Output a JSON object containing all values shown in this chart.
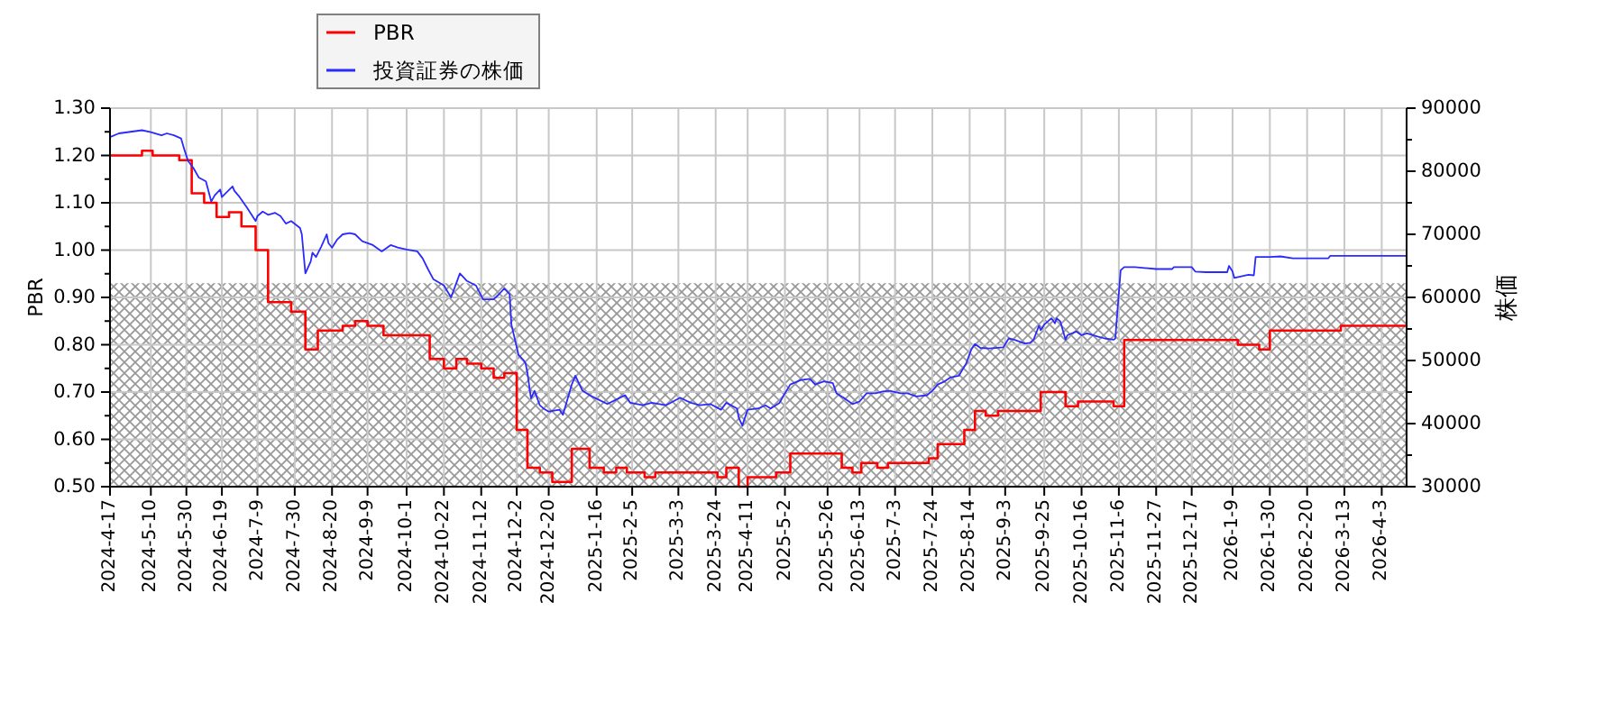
{
  "chart_data": {
    "type": "line",
    "ylabel": "PBR",
    "y2label": "株価",
    "xlim": [
      "2024-04-17",
      "2026-04-17"
    ],
    "xticks": [
      {
        "value": "2024-04-17",
        "label": "2024-4-17"
      },
      {
        "value": "2024-05-10",
        "label": "2024-5-10"
      },
      {
        "value": "2024-05-30",
        "label": "2024-5-30"
      },
      {
        "value": "2024-06-19",
        "label": "2024-6-19"
      },
      {
        "value": "2024-07-09",
        "label": "2024-7-9"
      },
      {
        "value": "2024-07-30",
        "label": "2024-7-30"
      },
      {
        "value": "2024-08-20",
        "label": "2024-8-20"
      },
      {
        "value": "2024-09-09",
        "label": "2024-9-9"
      },
      {
        "value": "2024-10-01",
        "label": "2024-10-1"
      },
      {
        "value": "2024-10-22",
        "label": "2024-10-22"
      },
      {
        "value": "2024-11-12",
        "label": "2024-11-12"
      },
      {
        "value": "2024-12-02",
        "label": "2024-12-2"
      },
      {
        "value": "2024-12-20",
        "label": "2024-12-20"
      },
      {
        "value": "2025-01-16",
        "label": "2025-1-16"
      },
      {
        "value": "2025-02-05",
        "label": "2025-2-5"
      },
      {
        "value": "2025-03-03",
        "label": "2025-3-3"
      },
      {
        "value": "2025-03-24",
        "label": "2025-3-24"
      },
      {
        "value": "2025-04-11",
        "label": "2025-4-11"
      },
      {
        "value": "2025-05-02",
        "label": "2025-5-2"
      },
      {
        "value": "2025-05-26",
        "label": "2025-5-26"
      },
      {
        "value": "2025-06-13",
        "label": "2025-6-13"
      },
      {
        "value": "2025-07-03",
        "label": "2025-7-3"
      },
      {
        "value": "2025-07-24",
        "label": "2025-7-24"
      },
      {
        "value": "2025-08-14",
        "label": "2025-8-14"
      },
      {
        "value": "2025-09-03",
        "label": "2025-9-3"
      },
      {
        "value": "2025-09-25",
        "label": "2025-9-25"
      },
      {
        "value": "2025-10-16",
        "label": "2025-10-16"
      },
      {
        "value": "2025-11-06",
        "label": "2025-11-6"
      },
      {
        "value": "2025-11-27",
        "label": "2025-11-27"
      },
      {
        "value": "2025-12-17",
        "label": "2025-12-17"
      },
      {
        "value": "2026-01-09",
        "label": "2026-1-9"
      },
      {
        "value": "2026-01-30",
        "label": "2026-1-30"
      },
      {
        "value": "2026-02-20",
        "label": "2026-2-20"
      },
      {
        "value": "2026-03-13",
        "label": "2026-3-13"
      },
      {
        "value": "2026-04-03",
        "label": "2026-4-3"
      }
    ],
    "ylim": [
      0.5,
      1.3
    ],
    "yticks": [
      {
        "value": 0.5,
        "label": "0.50"
      },
      {
        "value": 0.55,
        "label": null
      },
      {
        "value": 0.6,
        "label": "0.60"
      },
      {
        "value": 0.65,
        "label": null
      },
      {
        "value": 0.7,
        "label": "0.70"
      },
      {
        "value": 0.75,
        "label": null
      },
      {
        "value": 0.8,
        "label": "0.80"
      },
      {
        "value": 0.85,
        "label": null
      },
      {
        "value": 0.9,
        "label": "0.90"
      },
      {
        "value": 0.95,
        "label": null
      },
      {
        "value": 1.0,
        "label": "1.00"
      },
      {
        "value": 1.05,
        "label": null
      },
      {
        "value": 1.1,
        "label": "1.10"
      },
      {
        "value": 1.15,
        "label": null
      },
      {
        "value": 1.2,
        "label": "1.20"
      },
      {
        "value": 1.25,
        "label": null
      },
      {
        "value": 1.3,
        "label": "1.30"
      }
    ],
    "y2lim": [
      30000,
      90000
    ],
    "y2ticks": [
      30000,
      {
        "value": 35000,
        "label": null
      },
      40000,
      {
        "value": 45000,
        "label": null
      },
      50000,
      {
        "value": 55000,
        "label": null
      },
      60000,
      {
        "value": 65000,
        "label": null
      },
      70000,
      {
        "value": 75000,
        "label": null
      },
      80000,
      {
        "value": 85000,
        "label": null
      },
      90000
    ],
    "grid": true,
    "legend": "top",
    "bands": [
      {
        "axis": "y",
        "from": 0.5,
        "to": 0.93,
        "color": "#999999"
      }
    ],
    "series": [
      {
        "name": "PBR",
        "color": "#ff0000",
        "type": "step",
        "x": [
          "2024-04-17",
          "2024-05-05",
          "2024-05-11",
          "2024-05-26",
          "2024-06-02",
          "2024-06-09",
          "2024-06-16",
          "2024-06-23",
          "2024-06-30",
          "2024-07-08",
          "2024-07-15",
          "2024-07-28",
          "2024-08-05",
          "2024-08-12",
          "2024-08-26",
          "2024-09-02",
          "2024-09-09",
          "2024-09-18",
          "2024-10-14",
          "2024-10-22",
          "2024-10-29",
          "2024-11-04",
          "2024-11-12",
          "2024-11-19",
          "2024-11-25",
          "2024-12-02",
          "2024-12-08",
          "2024-12-15",
          "2024-12-22",
          "2025-01-02",
          "2025-01-12",
          "2025-01-20",
          "2025-01-27",
          "2025-02-02",
          "2025-02-12",
          "2025-02-18",
          "2025-03-25",
          "2025-03-30",
          "2025-04-06",
          "2025-04-11",
          "2025-04-27",
          "2025-05-05",
          "2025-06-03",
          "2025-06-09",
          "2025-06-14",
          "2025-06-23",
          "2025-06-29",
          "2025-07-22",
          "2025-07-27",
          "2025-08-11",
          "2025-08-17",
          "2025-08-23",
          "2025-08-30",
          "2025-09-23",
          "2025-10-07",
          "2025-10-14",
          "2025-11-03",
          "2025-11-09",
          "2026-01-12",
          "2026-01-24",
          "2026-01-30",
          "2026-03-11",
          "2026-04-17"
        ],
        "values": [
          1.2,
          1.21,
          1.2,
          1.19,
          1.12,
          1.1,
          1.07,
          1.08,
          1.05,
          1.0,
          0.89,
          0.87,
          0.79,
          0.83,
          0.84,
          0.85,
          0.84,
          0.82,
          0.77,
          0.75,
          0.77,
          0.76,
          0.75,
          0.73,
          0.74,
          0.62,
          0.54,
          0.53,
          0.51,
          0.58,
          0.54,
          0.53,
          0.54,
          0.53,
          0.52,
          0.53,
          0.52,
          0.54,
          0.5,
          0.52,
          0.53,
          0.57,
          0.54,
          0.53,
          0.55,
          0.54,
          0.55,
          0.56,
          0.59,
          0.62,
          0.66,
          0.65,
          0.66,
          0.7,
          0.67,
          0.68,
          0.67,
          0.81,
          0.8,
          0.79,
          0.83,
          0.84,
          0.84
        ]
      },
      {
        "name": "投資証券の株価",
        "color": "#2a2aff",
        "axis": "y2",
        "x": [
          "2024-04-17",
          "2024-04-22",
          "2024-05-05",
          "2024-05-10",
          "2024-05-16",
          "2024-05-19",
          "2024-05-23",
          "2024-05-27",
          "2024-05-29",
          "2024-05-31",
          "2024-06-03",
          "2024-06-06",
          "2024-06-10",
          "2024-06-13",
          "2024-06-15",
          "2024-06-18",
          "2024-06-19",
          "2024-06-25",
          "2024-06-26",
          "2024-06-29",
          "2024-07-03",
          "2024-07-08",
          "2024-07-09",
          "2024-07-12",
          "2024-07-15",
          "2024-07-19",
          "2024-07-22",
          "2024-07-25",
          "2024-07-28",
          "2024-08-02",
          "2024-08-03",
          "2024-08-05",
          "2024-08-08",
          "2024-08-09",
          "2024-08-11",
          "2024-08-14",
          "2024-08-17",
          "2024-08-18",
          "2024-08-20",
          "2024-08-23",
          "2024-08-26",
          "2024-08-30",
          "2024-09-02",
          "2024-09-06",
          "2024-09-12",
          "2024-09-17",
          "2024-09-22",
          "2024-09-26",
          "2024-10-01",
          "2024-10-07",
          "2024-10-10",
          "2024-10-13",
          "2024-10-16",
          "2024-10-22",
          "2024-10-26",
          "2024-10-31",
          "2024-11-04",
          "2024-11-09",
          "2024-11-13",
          "2024-11-19",
          "2024-11-22",
          "2024-11-25",
          "2024-11-28",
          "2024-11-29",
          "2024-12-03",
          "2024-12-06",
          "2024-12-07",
          "2024-12-08",
          "2024-12-10",
          "2024-12-12",
          "2024-12-15",
          "2024-12-17",
          "2024-12-20",
          "2024-12-26",
          "2024-12-28",
          "2025-01-02",
          "2025-01-04",
          "2025-01-08",
          "2025-01-12",
          "2025-01-17",
          "2025-01-22",
          "2025-01-27",
          "2025-02-01",
          "2025-02-04",
          "2025-02-11",
          "2025-02-16",
          "2025-02-24",
          "2025-03-04",
          "2025-03-10",
          "2025-03-15",
          "2025-03-21",
          "2025-03-27",
          "2025-03-30",
          "2025-04-05",
          "2025-04-06",
          "2025-04-08",
          "2025-04-11",
          "2025-04-17",
          "2025-04-21",
          "2025-04-24",
          "2025-04-29",
          "2025-05-02",
          "2025-05-05",
          "2025-05-11",
          "2025-05-16",
          "2025-05-19",
          "2025-05-24",
          "2025-05-29",
          "2025-05-31",
          "2025-06-04",
          "2025-06-09",
          "2025-06-13",
          "2025-06-17",
          "2025-06-22",
          "2025-06-26",
          "2025-06-30",
          "2025-07-06",
          "2025-07-10",
          "2025-07-15",
          "2025-07-21",
          "2025-07-24",
          "2025-07-27",
          "2025-07-31",
          "2025-08-03",
          "2025-08-08",
          "2025-08-09",
          "2025-08-12",
          "2025-08-15",
          "2025-08-17",
          "2025-08-20",
          "2025-08-25",
          "2025-09-02",
          "2025-09-05",
          "2025-09-08",
          "2025-09-14",
          "2025-09-17",
          "2025-09-19",
          "2025-09-22",
          "2025-09-23",
          "2025-09-25",
          "2025-09-29",
          "2025-10-01",
          "2025-10-02",
          "2025-10-04",
          "2025-10-07",
          "2025-10-08",
          "2025-10-13",
          "2025-10-16",
          "2025-10-19",
          "2025-10-25",
          "2025-10-29",
          "2025-11-03",
          "2025-11-04",
          "2025-11-07",
          "2025-11-09",
          "2025-11-15",
          "2025-11-27",
          "2025-12-06",
          "2025-12-07",
          "2025-12-17",
          "2025-12-19",
          "2025-12-25",
          "2026-01-06",
          "2026-01-07",
          "2026-01-09",
          "2026-01-10",
          "2026-01-15",
          "2026-01-18",
          "2026-01-21",
          "2026-01-22",
          "2026-01-30",
          "2026-02-05",
          "2026-02-12",
          "2026-03-04",
          "2026-03-05",
          "2026-04-17"
        ],
        "values": [
          85400,
          86000,
          86500,
          86200,
          85700,
          86000,
          85700,
          85200,
          83300,
          81600,
          80500,
          79000,
          78400,
          75200,
          76200,
          77100,
          75900,
          77600,
          76900,
          75900,
          74300,
          72100,
          72900,
          73600,
          73100,
          73400,
          72900,
          71700,
          72100,
          71000,
          70000,
          63800,
          65700,
          67100,
          66400,
          68100,
          70000,
          68600,
          67900,
          69200,
          70000,
          70200,
          70000,
          68900,
          68300,
          67300,
          68300,
          67900,
          67600,
          67300,
          66200,
          64500,
          62900,
          61900,
          60000,
          63800,
          62600,
          61900,
          59700,
          59700,
          60500,
          61400,
          60500,
          55700,
          50900,
          50000,
          49500,
          48100,
          44000,
          45200,
          42900,
          42400,
          41900,
          42200,
          41400,
          46200,
          47600,
          45200,
          44500,
          43800,
          43100,
          43800,
          44500,
          43300,
          42900,
          43300,
          42900,
          44100,
          43300,
          42900,
          43100,
          42200,
          43300,
          42400,
          40900,
          39700,
          42200,
          42400,
          42900,
          42400,
          43300,
          44800,
          46200,
          46900,
          47100,
          46200,
          46700,
          46400,
          44800,
          44100,
          43100,
          43500,
          44800,
          44800,
          45100,
          45200,
          44800,
          44800,
          44300,
          44500,
          45200,
          46200,
          46700,
          47300,
          47600,
          48100,
          49500,
          51800,
          52600,
          52000,
          51900,
          52100,
          53500,
          53300,
          52700,
          52800,
          53300,
          55500,
          54800,
          55700,
          56700,
          55900,
          56700,
          56200,
          53300,
          54000,
          54600,
          54000,
          54300,
          53800,
          53500,
          53300,
          53500,
          64300,
          64800,
          64800,
          64500,
          64500,
          64800,
          64800,
          64100,
          64000,
          64000,
          65000,
          64100,
          63100,
          63400,
          63600,
          63500,
          66400,
          66400,
          66500,
          66200,
          66200,
          66600,
          66600
        ]
      }
    ]
  }
}
